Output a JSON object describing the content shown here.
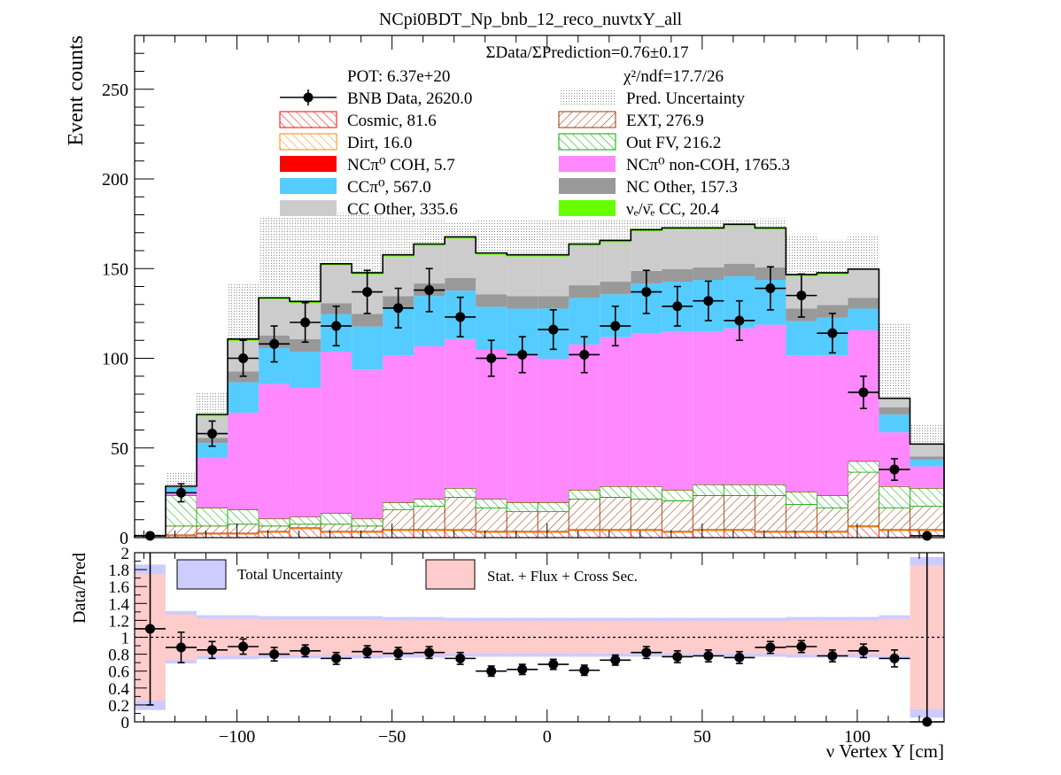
{
  "chart_data": [
    {
      "type": "bar",
      "title": "NCpi0BDT_Np_bnb_12_reco_nuvtxY_all",
      "ylabel": "Event counts",
      "xlim": [
        -133,
        128
      ],
      "ylim": [
        0,
        280
      ],
      "yticks": [
        0,
        50,
        100,
        150,
        200,
        250
      ],
      "bin_edges": [
        -133,
        -123,
        -113,
        -103,
        -93,
        -83,
        -73,
        -63,
        -53,
        -43,
        -33,
        -23,
        -13,
        -3,
        7,
        17,
        27,
        37,
        47,
        57,
        67,
        77,
        87,
        97,
        107,
        117,
        128
      ],
      "annotations": {
        "ratio": "ΣData/ΣPrediction=0.76±0.17",
        "pot": "POT: 6.37e+20",
        "chi2": "χ²/ndf=17.7/26"
      },
      "legend_placement": "top",
      "series": [
        {
          "name": "Cosmic, 81.6",
          "style": "hatch",
          "color": "#ff0000",
          "values": [
            0,
            1,
            2,
            2,
            3,
            5,
            3,
            3,
            4,
            4,
            4,
            3,
            3,
            3,
            4,
            4,
            4,
            3,
            4,
            4,
            3,
            3,
            3,
            6,
            4,
            4
          ]
        },
        {
          "name": "Dirt, 16.0",
          "style": "hatch",
          "color": "#ff8800",
          "values": [
            0,
            0.5,
            0.5,
            0.5,
            0.5,
            0.5,
            0.5,
            0.5,
            0.5,
            0.5,
            0.5,
            0.5,
            0.5,
            0.5,
            0.5,
            0.5,
            0.5,
            0.5,
            0.5,
            0.5,
            0.5,
            0.5,
            0.5,
            0.5,
            0.5,
            0.5
          ]
        },
        {
          "name": "EXT, 276.9",
          "style": "hatch",
          "color": "#993300",
          "values": [
            0,
            5,
            4,
            5,
            3,
            2,
            4,
            3,
            11,
            13,
            18,
            13,
            11,
            11,
            17,
            18,
            17,
            17,
            19,
            19,
            20,
            15,
            13,
            30,
            12,
            13
          ]
        },
        {
          "name": "Out FV, 216.2",
          "style": "hatch",
          "color": "#00aa00",
          "values": [
            1,
            17,
            10,
            8,
            4,
            4,
            6,
            4,
            4,
            4,
            5,
            5,
            5,
            5,
            5,
            6,
            7,
            6,
            6,
            6,
            6,
            7,
            7,
            6,
            12,
            10
          ]
        },
        {
          "name": "NCπ⁰ COH,  5.7",
          "style": "fill",
          "color": "#ff0000",
          "values": [
            0,
            0.2,
            0.2,
            0.2,
            0.2,
            0.2,
            0.2,
            0.2,
            0.2,
            0.2,
            0.2,
            0.2,
            0.2,
            0.2,
            0.2,
            0.2,
            0.2,
            0.2,
            0.2,
            0.2,
            0.2,
            0.2,
            0.2,
            0.2,
            0.2,
            0.2
          ]
        },
        {
          "name": "NCπ⁰ non-COH,  1765.3",
          "style": "fill",
          "color": "#ff88ff",
          "values": [
            0,
            1,
            28,
            54,
            75,
            72,
            90,
            83,
            82,
            85,
            83,
            83,
            82,
            80,
            81,
            83,
            85,
            88,
            85,
            87,
            89,
            76,
            78,
            73,
            30,
            12
          ]
        },
        {
          "name": "CCπ⁰, 567.0",
          "style": "fill",
          "color": "#55ccff",
          "values": [
            0,
            3,
            8,
            17,
            20,
            20,
            21,
            24,
            26,
            28,
            27,
            24,
            26,
            28,
            26,
            24,
            28,
            28,
            29,
            29,
            25,
            19,
            21,
            12,
            10,
            4
          ]
        },
        {
          "name": "NC Other, 157.3",
          "style": "fill",
          "color": "#999999",
          "values": [
            0,
            0.5,
            3,
            6,
            7,
            7,
            6,
            7,
            7,
            7,
            7,
            7,
            7,
            7,
            7,
            7,
            7,
            7,
            7,
            7,
            7,
            7,
            7,
            6,
            4,
            1.5
          ]
        },
        {
          "name": "CC Other, 335.6",
          "style": "fill",
          "color": "#cccccc",
          "values": [
            0,
            0.5,
            12,
            17,
            20,
            20,
            21,
            22,
            22,
            21,
            22,
            22,
            22,
            22,
            22,
            22,
            22,
            22,
            21,
            21,
            21,
            18,
            17,
            16,
            5,
            7
          ]
        },
        {
          "name": "νₑ/ν̄ₑ CC, 20.4",
          "style": "fill",
          "color": "#66ff00",
          "values": [
            0,
            0,
            1,
            1,
            1,
            1,
            1,
            1,
            1,
            1,
            1,
            1,
            1,
            1,
            1,
            1,
            1,
            1,
            1,
            1,
            1,
            1,
            1,
            0,
            0,
            0
          ]
        }
      ],
      "uncertainty": {
        "name": "Pred. Uncertainty",
        "values": [
          2,
          37,
          81,
          142,
          179,
          180,
          181,
          180,
          178,
          178,
          176,
          177,
          177,
          177,
          177,
          177,
          177,
          177,
          177,
          177,
          178,
          169,
          166,
          169,
          120,
          63
        ]
      },
      "data": {
        "name": "BNB Data, 2620.0",
        "x": [
          -128,
          -118,
          -108,
          -98,
          -88,
          -78,
          -68,
          -58,
          -48,
          -38,
          -28,
          -18,
          -8,
          2,
          12,
          22,
          32,
          42,
          52,
          62,
          72,
          82,
          92,
          102,
          112,
          122.5
        ],
        "y": [
          1,
          25,
          58,
          100,
          108,
          120,
          118,
          137,
          128,
          138,
          123,
          100,
          102,
          116,
          102,
          118,
          137,
          129,
          132,
          121,
          139,
          135,
          114,
          81,
          38,
          1
        ],
        "yerr": [
          1,
          5,
          7,
          10,
          10,
          11,
          11,
          12,
          11,
          12,
          11,
          10,
          10,
          11,
          10,
          11,
          12,
          11,
          11,
          11,
          12,
          12,
          11,
          9,
          6,
          1
        ]
      }
    },
    {
      "type": "scatter",
      "xlabel": "ν Vertex Y [cm]",
      "ylabel": "Data/Pred",
      "xlim": [
        -133,
        128
      ],
      "ylim": [
        0,
        2
      ],
      "yticks": [
        0,
        0.2,
        0.4,
        0.6,
        0.8,
        1,
        1.2,
        1.4,
        1.6,
        1.8,
        2
      ],
      "xticks": [
        -100,
        -50,
        0,
        50,
        100
      ],
      "xticklabels": [
        "−100",
        "−50",
        "0",
        "50",
        "100"
      ],
      "reference_line": 1,
      "legend": [
        {
          "name": "Total Uncertainty",
          "color": "#ccccff"
        },
        {
          "name": "Stat. + Flux + Cross Sec.",
          "color": "#ffcccc"
        }
      ],
      "total_uncertainty": [
        0.86,
        0.31,
        0.26,
        0.26,
        0.25,
        0.25,
        0.25,
        0.25,
        0.24,
        0.24,
        0.23,
        0.23,
        0.23,
        0.23,
        0.23,
        0.23,
        0.23,
        0.23,
        0.23,
        0.23,
        0.23,
        0.24,
        0.24,
        0.24,
        0.26,
        0.95
      ],
      "stat_flux_xsec": [
        0.75,
        0.27,
        0.22,
        0.22,
        0.21,
        0.21,
        0.21,
        0.21,
        0.2,
        0.2,
        0.19,
        0.19,
        0.19,
        0.19,
        0.19,
        0.19,
        0.19,
        0.19,
        0.19,
        0.19,
        0.19,
        0.2,
        0.2,
        0.2,
        0.22,
        0.85
      ],
      "points": {
        "x": [
          -128,
          -118,
          -108,
          -98,
          -88,
          -78,
          -68,
          -58,
          -48,
          -38,
          -28,
          -18,
          -8,
          2,
          12,
          22,
          32,
          42,
          52,
          62,
          72,
          82,
          92,
          102,
          112,
          122.5
        ],
        "y": [
          1.1,
          0.88,
          0.85,
          0.89,
          0.8,
          0.84,
          0.75,
          0.83,
          0.81,
          0.82,
          0.75,
          0.6,
          0.62,
          0.68,
          0.61,
          0.73,
          0.82,
          0.77,
          0.78,
          0.76,
          0.88,
          0.89,
          0.78,
          0.84,
          0.75,
          0.0
        ],
        "yerr": [
          0.9,
          0.18,
          0.1,
          0.09,
          0.08,
          0.07,
          0.07,
          0.07,
          0.07,
          0.07,
          0.07,
          0.06,
          0.06,
          0.06,
          0.06,
          0.06,
          0.07,
          0.07,
          0.07,
          0.07,
          0.07,
          0.07,
          0.07,
          0.08,
          0.1,
          2.0
        ]
      }
    }
  ]
}
